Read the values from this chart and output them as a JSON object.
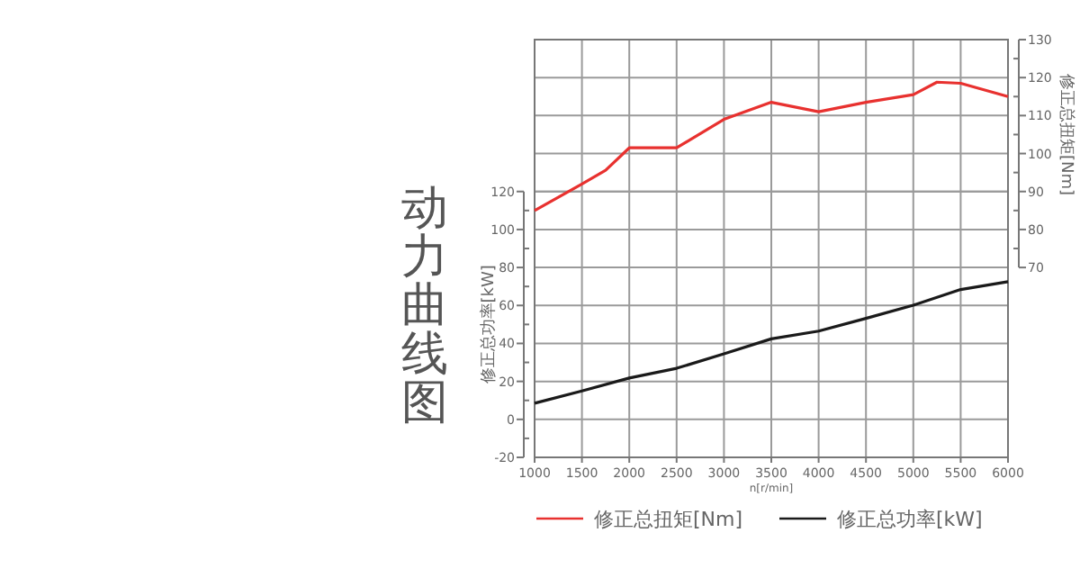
{
  "chart_data": {
    "type": "line",
    "title": "动力曲线图",
    "xlabel": "n[r/min]",
    "ylabel": "修正总功率[kW]",
    "y2label": "修正总扭矩[Nm]",
    "xlim": [
      1000,
      6000
    ],
    "xticks": [
      1000,
      1500,
      2000,
      2500,
      3000,
      3500,
      4000,
      4500,
      5000,
      5500,
      6000
    ],
    "ylim": [
      -20,
      200
    ],
    "yticks": [
      -20,
      {
        "value": -10,
        "label": null
      },
      0,
      {
        "value": 10,
        "label": null
      },
      20,
      {
        "value": 30,
        "label": null
      },
      40,
      {
        "value": 50,
        "label": null
      },
      60,
      {
        "value": 70,
        "label": null
      },
      80,
      {
        "value": 90,
        "label": null
      },
      100,
      {
        "value": 110,
        "label": null
      },
      120
    ],
    "y2lim": [
      20,
      130
    ],
    "y2ticks": [
      70,
      {
        "value": 75,
        "label": null
      },
      80,
      {
        "value": 85,
        "label": null
      },
      90,
      {
        "value": 95,
        "label": null
      },
      100,
      {
        "value": 105,
        "label": null
      },
      110,
      {
        "value": 115,
        "label": null
      },
      120,
      {
        "value": 125,
        "label": null
      },
      130
    ],
    "grid": true,
    "legend": "bottom",
    "series": [
      {
        "name": "修正总扭矩[Nm]",
        "color": "#e8312f",
        "axis": "y2",
        "x": [
          1000,
          1500,
          1750,
          2000,
          2500,
          3000,
          3500,
          4000,
          4500,
          5000,
          5250,
          5500,
          6000
        ],
        "values": [
          85,
          92,
          95.6,
          101.5,
          101.5,
          109,
          113.5,
          111,
          113.5,
          115.5,
          118.8,
          118.5,
          115
        ]
      },
      {
        "name": "修正总功率[kW]",
        "color": "#1a1a1a",
        "x": [
          1000,
          1500,
          2000,
          2500,
          3000,
          3500,
          4000,
          4500,
          5000,
          5500,
          6000
        ],
        "values": [
          8.5,
          15,
          21.8,
          26.9,
          34.5,
          42.4,
          46.5,
          53.2,
          60.1,
          68.4,
          72.5
        ]
      }
    ]
  }
}
